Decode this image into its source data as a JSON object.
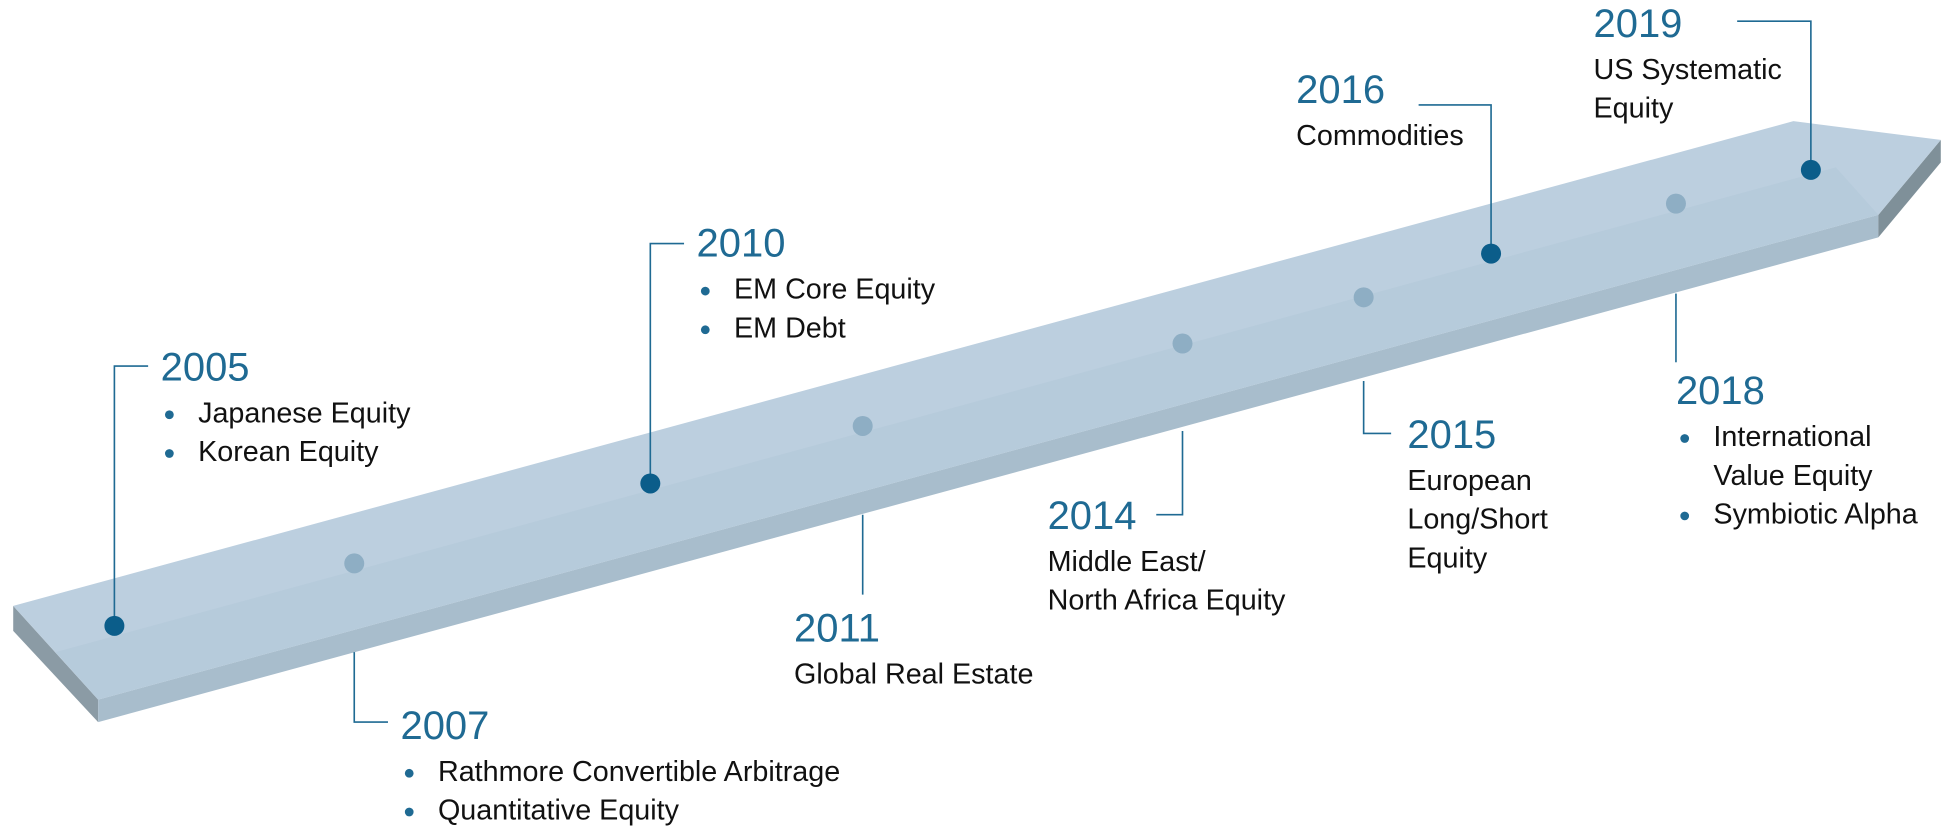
{
  "milestones": [
    {
      "year": "2005",
      "items": [
        [
          "Japanese Equity"
        ],
        [
          "Korean Equity"
        ]
      ]
    },
    {
      "year": "2007",
      "items": [
        [
          "Rathmore Convertible Arbitrage"
        ],
        [
          "Quantitative Equity"
        ]
      ]
    },
    {
      "year": "2010",
      "items": [
        [
          "EM Core Equity"
        ],
        [
          "EM Debt"
        ]
      ]
    },
    {
      "year": "2011",
      "lines": [
        "Global Real Estate"
      ]
    },
    {
      "year": "2014",
      "lines": [
        "Middle East/",
        "North Africa Equity"
      ]
    },
    {
      "year": "2015",
      "lines": [
        "European",
        "Long/Short",
        "Equity"
      ]
    },
    {
      "year": "2016",
      "lines": [
        "Commodities"
      ]
    },
    {
      "year": "2018",
      "items": [
        [
          "International",
          "Value Equity"
        ],
        [
          "Symbiotic Alpha"
        ]
      ]
    },
    {
      "year": "2019",
      "lines": [
        "US Systematic",
        "Equity"
      ]
    }
  ]
}
